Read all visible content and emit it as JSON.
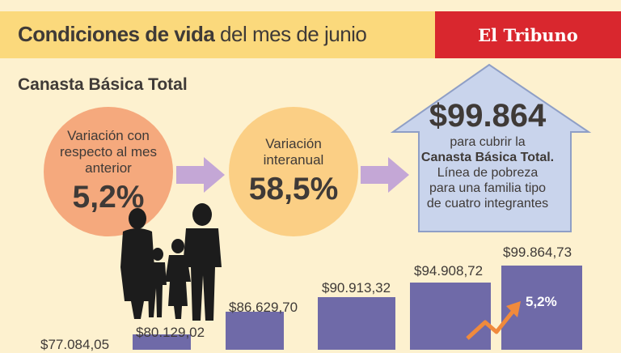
{
  "header": {
    "title_bold": "Condiciones de vida",
    "title_rest": " del mes de junio",
    "brand": "El Tribuno"
  },
  "section_title": "Canasta Básica Total",
  "stats": {
    "monthly_label": "Variación con respecto al mes anterior",
    "monthly_value": "5,2%",
    "yearly_label": "Variación interanual",
    "yearly_value": "58,5%"
  },
  "house": {
    "amount": "$99.864",
    "line1": "para cubrir la",
    "line2": "Canasta Básica Total.",
    "line3": "Línea de pobreza",
    "line4": "para una familia tipo",
    "line5": "de cuatro integrantes"
  },
  "chart_data": {
    "type": "bar",
    "values": [
      77084.05,
      80129.02,
      86629.7,
      90913.32,
      94908.72,
      99864.73
    ],
    "value_labels": [
      "$77.084,05",
      "$80.129,02",
      "$86.629,70",
      "$90.913,32",
      "$94.908,72",
      "$99.864,73"
    ],
    "annotation": "5,2%",
    "colors": {
      "bar": "#6f6aa8",
      "first_bar": "#8a8aa0",
      "trend_arrow": "#f08a3c"
    }
  }
}
